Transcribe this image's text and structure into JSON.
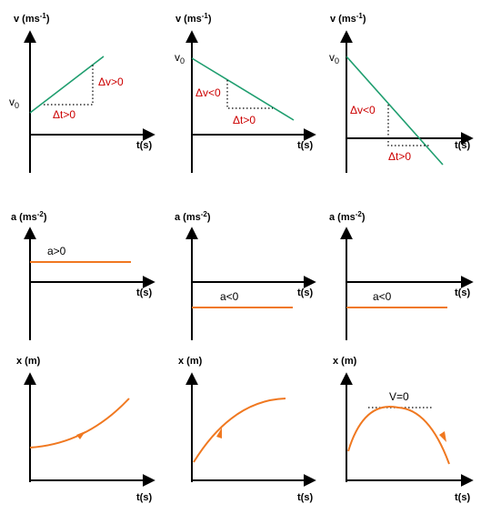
{
  "velocity_graphs": [
    {
      "y_label": "v (ms",
      "y_unit_sup": "-1",
      "y_label_end": ")",
      "x_label": "t(s)",
      "v0": "v",
      "v0_sub": "0",
      "dv_label": "Δv>0",
      "dt_label": "Δt>0"
    },
    {
      "y_label": "v (ms",
      "y_unit_sup": "-1",
      "y_label_end": ")",
      "x_label": "t(s)",
      "v0": "v",
      "v0_sub": "0",
      "dv_label": "Δv<0",
      "dt_label": "Δt>0"
    },
    {
      "y_label": "v (ms",
      "y_unit_sup": "-1",
      "y_label_end": ")",
      "x_label": "t(s)",
      "v0": "v",
      "v0_sub": "0",
      "dv_label": "Δv<0",
      "dt_label": "Δt>0"
    }
  ],
  "acceleration_graphs": [
    {
      "y_label": "a (ms",
      "y_unit_sup": "-2",
      "y_label_end": ")",
      "x_label": "t(s)",
      "a_label": "a>0"
    },
    {
      "y_label": "a (ms",
      "y_unit_sup": "-2",
      "y_label_end": ")",
      "x_label": "t(s)",
      "a_label": "a<0"
    },
    {
      "y_label": "a (ms",
      "y_unit_sup": "-2",
      "y_label_end": ")",
      "x_label": "t(s)",
      "a_label": "a<0"
    }
  ],
  "position_graphs": [
    {
      "y_label": "x (m)",
      "x_label": "t(s)"
    },
    {
      "y_label": "x (m)",
      "x_label": "t(s)"
    },
    {
      "y_label": "x (m)",
      "x_label": "t(s)",
      "peak_label": "V=0"
    }
  ],
  "colors": {
    "velocity_line": "#1f9e6f",
    "acceleration_line": "#f07820",
    "position_curve": "#f07820",
    "annotation": "#cc0000"
  }
}
